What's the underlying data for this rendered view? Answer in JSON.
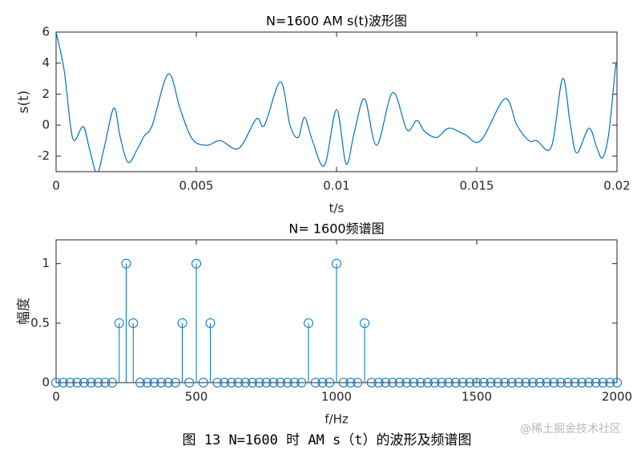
{
  "chart_data": [
    {
      "type": "line",
      "title": "N=1600 AM s(t)波形图",
      "x_label": "t/s",
      "y_label": "s(t)",
      "xlim": [
        0,
        0.02
      ],
      "xticks": [
        0,
        0.005,
        0.01,
        0.015,
        0.02
      ],
      "ylim": [
        -3,
        6
      ],
      "yticks": [
        -2,
        0,
        2,
        4,
        6
      ],
      "grid": false,
      "color": "#0072bd",
      "x": [
        0,
        0.00029,
        0.00051,
        0.00066,
        0.00097,
        0.0012,
        0.00146,
        0.00171,
        0.00206,
        0.00229,
        0.00257,
        0.00291,
        0.00314,
        0.00343,
        0.004,
        0.00443,
        0.00486,
        0.00537,
        0.00586,
        0.00651,
        0.00714,
        0.00743,
        0.008,
        0.00834,
        0.00863,
        0.00886,
        0.00914,
        0.00957,
        0.01,
        0.01034,
        0.01063,
        0.011,
        0.01143,
        0.012,
        0.01251,
        0.01286,
        0.01314,
        0.01357,
        0.014,
        0.01457,
        0.01514,
        0.016,
        0.01643,
        0.01686,
        0.01714,
        0.01766,
        0.01806,
        0.01834,
        0.01857,
        0.019,
        0.01929,
        0.01949,
        0.01971,
        0.01994,
        0.02
      ],
      "values": [
        6,
        3.5,
        0,
        -1,
        -0.1,
        -1.6,
        -3.1,
        -1.5,
        1.1,
        -0.8,
        -2.4,
        -1.5,
        -0.7,
        0,
        3.3,
        1,
        -0.9,
        -1.3,
        -1,
        -1.5,
        0.4,
        0,
        2.8,
        0,
        -0.8,
        0.5,
        -1,
        -2.6,
        1,
        -2.5,
        -0.5,
        1.7,
        -1.3,
        2.1,
        -0.3,
        0.3,
        -0.4,
        -0.8,
        -0.2,
        -0.6,
        -1,
        1.7,
        0,
        -1,
        -1,
        -1.4,
        3,
        0,
        -1.8,
        -0.2,
        -1.5,
        -2.1,
        -0.5,
        3.6,
        4
      ]
    },
    {
      "type": "stem",
      "title": "N= 1600频谱图",
      "x_label": "f/Hz",
      "y_label": "幅度",
      "xlim": [
        0,
        2000
      ],
      "xticks": [
        0,
        500,
        1000,
        1500,
        2000
      ],
      "ylim": [
        0,
        1.2
      ],
      "yticks": [
        0,
        0.5,
        1
      ],
      "grid": false,
      "color": "#0072bd",
      "x": [
        0,
        25,
        50,
        75,
        100,
        125,
        150,
        175,
        200,
        225,
        250,
        275,
        300,
        325,
        350,
        375,
        400,
        425,
        450,
        475,
        500,
        525,
        550,
        575,
        600,
        625,
        650,
        675,
        700,
        725,
        750,
        775,
        800,
        825,
        850,
        875,
        900,
        925,
        950,
        975,
        1000,
        1025,
        1050,
        1075,
        1100,
        1125,
        1150,
        1175,
        1200,
        1225,
        1250,
        1275,
        1300,
        1325,
        1350,
        1375,
        1400,
        1425,
        1450,
        1475,
        1500,
        1525,
        1550,
        1575,
        1600,
        1625,
        1650,
        1675,
        1700,
        1725,
        1750,
        1775,
        1800,
        1825,
        1850,
        1875,
        1900,
        1925,
        1950,
        1975,
        2000
      ],
      "values": [
        0,
        0,
        0,
        0,
        0,
        0,
        0,
        0,
        0,
        0.5,
        1,
        0.5,
        0,
        0,
        0,
        0,
        0,
        0,
        0.5,
        0,
        1,
        0,
        0.5,
        0,
        0,
        0,
        0,
        0,
        0,
        0,
        0,
        0,
        0,
        0,
        0,
        0,
        0.5,
        0,
        0,
        0,
        1,
        0,
        0,
        0,
        0.5,
        0,
        0,
        0,
        0,
        0,
        0,
        0,
        0,
        0,
        0,
        0,
        0,
        0,
        0,
        0,
        0,
        0,
        0,
        0,
        0,
        0,
        0,
        0,
        0,
        0,
        0,
        0,
        0,
        0,
        0,
        0,
        0,
        0,
        0,
        0,
        0
      ]
    }
  ],
  "caption": "图 13 N=1600 时 AM s（t）的波形及频谱图",
  "watermark": "@稀土掘金技术社区"
}
